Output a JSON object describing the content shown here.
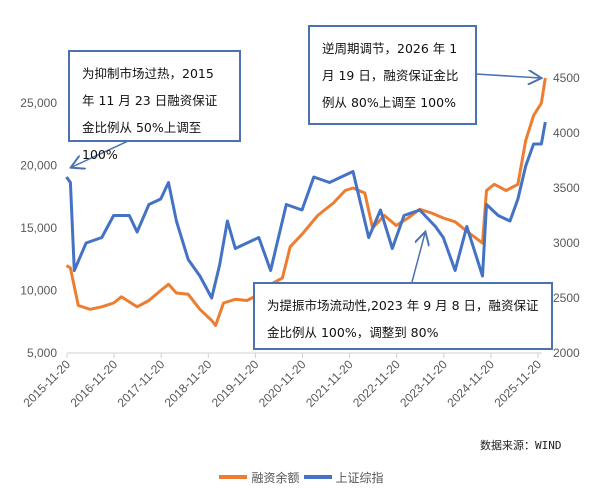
{
  "chart_data": {
    "type": "line",
    "x_tick_labels": [
      "2015-11-20",
      "2016-11-20",
      "2017-11-20",
      "2018-11-20",
      "2019-11-20",
      "2020-11-20",
      "2021-11-20",
      "2022-11-20",
      "2023-11-20",
      "2024-11-20",
      "2025-11-20"
    ],
    "y_left": {
      "ticks": [
        "5,000",
        "10,000",
        "15,000",
        "20,000",
        "25,000"
      ],
      "range": [
        5000,
        30000
      ]
    },
    "y_right": {
      "ticks": [
        "2000",
        "2500",
        "3000",
        "3500",
        "4000",
        "4500"
      ],
      "range": [
        2000,
        4500
      ]
    },
    "series": [
      {
        "name": "融资余额",
        "axis": "left",
        "color": "#ed7d31",
        "x": [
          "2015-11",
          "2015-12",
          "2016-02",
          "2016-05",
          "2016-08",
          "2016-11",
          "2017-01",
          "2017-05",
          "2017-08",
          "2017-11",
          "2018-01",
          "2018-03",
          "2018-06",
          "2018-09",
          "2018-12",
          "2019-01",
          "2019-03",
          "2019-06",
          "2019-09",
          "2019-12",
          "2020-03",
          "2020-06",
          "2020-08",
          "2020-11",
          "2021-03",
          "2021-07",
          "2021-10",
          "2021-12",
          "2022-03",
          "2022-05",
          "2022-08",
          "2022-11",
          "2023-02",
          "2023-05",
          "2023-08",
          "2023-11",
          "2024-02",
          "2024-06",
          "2024-09",
          "2024-10",
          "2024-12",
          "2025-03",
          "2025-06",
          "2025-08",
          "2025-10",
          "2025-12",
          "2026-01"
        ],
        "values": [
          12000,
          11800,
          8800,
          8500,
          8700,
          9000,
          9500,
          8700,
          9200,
          10000,
          10500,
          9800,
          9700,
          8500,
          7600,
          7200,
          9000,
          9300,
          9200,
          9700,
          10500,
          11000,
          13500,
          14500,
          16000,
          17000,
          18000,
          18200,
          17800,
          15000,
          16000,
          15200,
          15800,
          16500,
          16200,
          15800,
          15500,
          14500,
          13800,
          18000,
          18500,
          18000,
          18500,
          22000,
          24000,
          25000,
          27000
        ]
      },
      {
        "name": "上证综指",
        "axis": "right",
        "color": "#4472c4",
        "x": [
          "2015-11",
          "2015-12",
          "2016-01",
          "2016-04",
          "2016-08",
          "2016-11",
          "2017-03",
          "2017-05",
          "2017-08",
          "2017-11",
          "2018-01",
          "2018-03",
          "2018-06",
          "2018-09",
          "2018-12",
          "2019-02",
          "2019-04",
          "2019-06",
          "2019-09",
          "2019-12",
          "2020-03",
          "2020-07",
          "2020-11",
          "2021-02",
          "2021-06",
          "2021-09",
          "2021-12",
          "2022-04",
          "2022-07",
          "2022-10",
          "2023-01",
          "2023-05",
          "2023-09",
          "2023-11",
          "2024-02",
          "2024-05",
          "2024-09",
          "2024-10",
          "2025-01",
          "2025-04",
          "2025-06",
          "2025-08",
          "2025-10",
          "2025-12",
          "2026-01"
        ],
        "values": [
          3600,
          3550,
          2750,
          3000,
          3050,
          3250,
          3250,
          3100,
          3350,
          3400,
          3550,
          3200,
          2850,
          2700,
          2500,
          2800,
          3200,
          2950,
          3000,
          3050,
          2750,
          3350,
          3300,
          3600,
          3550,
          3600,
          3650,
          3050,
          3300,
          2950,
          3250,
          3300,
          3150,
          3050,
          2750,
          3150,
          2700,
          3350,
          3250,
          3200,
          3400,
          3700,
          3900,
          3900,
          4100
        ]
      }
    ]
  },
  "annotations": {
    "note1": "为抑制市场过热，2015 年 11 月 23 日融资保证金比例从 50%上调至 100%",
    "note2": "逆周期调节，2026 年 1 月 19 日，融资保证金比例从 80%上调至 100%",
    "note3": "为提振市场流动性,2023 年 9 月 8 日，融资保证金比例从 100%，调整到 80%"
  },
  "source": "数据来源：WIND",
  "legend": [
    "融资余额",
    "上证综指"
  ]
}
